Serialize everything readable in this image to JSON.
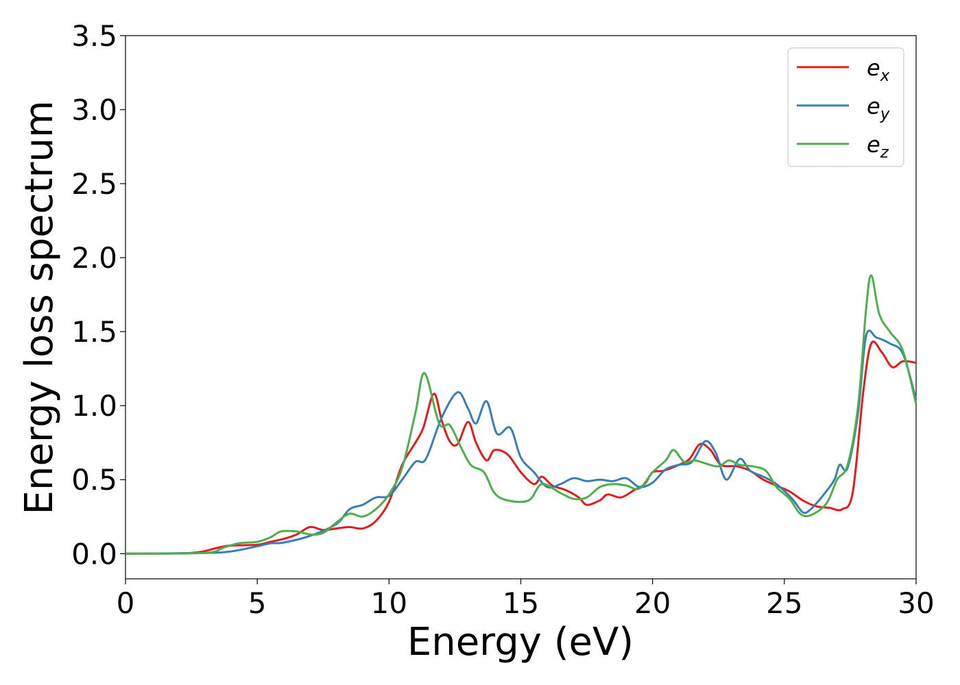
{
  "chart_data": {
    "type": "line",
    "xlabel": "Energy (eV)",
    "ylabel": "Energy loss spectrum",
    "xlim": [
      0,
      30
    ],
    "ylim": [
      -0.17,
      3.5
    ],
    "xticks": [
      "0",
      "5",
      "10",
      "15",
      "20",
      "25",
      "30"
    ],
    "yticks": [
      "0.0",
      "0.5",
      "1.0",
      "1.5",
      "2.0",
      "2.5",
      "3.0",
      "3.5"
    ],
    "grid": false,
    "legend_position": "top-right",
    "series": [
      {
        "name": "e",
        "subscript": "x",
        "color": "#e41a1c",
        "points": [
          [
            0,
            0
          ],
          [
            2.5,
            0.005
          ],
          [
            3.5,
            0.04
          ],
          [
            4,
            0.055
          ],
          [
            5,
            0.06
          ],
          [
            5.5,
            0.08
          ],
          [
            6,
            0.1
          ],
          [
            6.5,
            0.13
          ],
          [
            7,
            0.18
          ],
          [
            7.5,
            0.16
          ],
          [
            8,
            0.17
          ],
          [
            8.5,
            0.18
          ],
          [
            9,
            0.17
          ],
          [
            9.5,
            0.22
          ],
          [
            10,
            0.35
          ],
          [
            10.5,
            0.6
          ],
          [
            11,
            0.75
          ],
          [
            11.3,
            0.85
          ],
          [
            11.7,
            1.08
          ],
          [
            12,
            0.9
          ],
          [
            12.3,
            0.76
          ],
          [
            12.6,
            0.74
          ],
          [
            13,
            0.89
          ],
          [
            13.3,
            0.75
          ],
          [
            13.7,
            0.63
          ],
          [
            14,
            0.7
          ],
          [
            14.5,
            0.67
          ],
          [
            15,
            0.55
          ],
          [
            15.5,
            0.47
          ],
          [
            15.8,
            0.52
          ],
          [
            16.2,
            0.46
          ],
          [
            16.7,
            0.43
          ],
          [
            17.2,
            0.38
          ],
          [
            17.5,
            0.33
          ],
          [
            18,
            0.36
          ],
          [
            18.3,
            0.4
          ],
          [
            18.8,
            0.38
          ],
          [
            19.3,
            0.43
          ],
          [
            19.7,
            0.47
          ],
          [
            20,
            0.55
          ],
          [
            20.4,
            0.56
          ],
          [
            21,
            0.6
          ],
          [
            21.4,
            0.64
          ],
          [
            21.8,
            0.74
          ],
          [
            22.2,
            0.7
          ],
          [
            22.6,
            0.6
          ],
          [
            23.2,
            0.59
          ],
          [
            23.7,
            0.56
          ],
          [
            24.2,
            0.5
          ],
          [
            24.7,
            0.46
          ],
          [
            25.2,
            0.42
          ],
          [
            25.7,
            0.36
          ],
          [
            26.2,
            0.32
          ],
          [
            26.7,
            0.31
          ],
          [
            27.2,
            0.3
          ],
          [
            27.6,
            0.42
          ],
          [
            28,
            1.1
          ],
          [
            28.3,
            1.42
          ],
          [
            28.7,
            1.36
          ],
          [
            29.1,
            1.26
          ],
          [
            29.5,
            1.3
          ],
          [
            30,
            1.29
          ]
        ]
      },
      {
        "name": "e",
        "subscript": "y",
        "color": "#377eb8",
        "points": [
          [
            0,
            0
          ],
          [
            3,
            0.005
          ],
          [
            4,
            0.015
          ],
          [
            5,
            0.05
          ],
          [
            5.5,
            0.07
          ],
          [
            6,
            0.075
          ],
          [
            7,
            0.12
          ],
          [
            8,
            0.2
          ],
          [
            8.5,
            0.3
          ],
          [
            9,
            0.33
          ],
          [
            9.5,
            0.38
          ],
          [
            10,
            0.39
          ],
          [
            10.5,
            0.5
          ],
          [
            11,
            0.62
          ],
          [
            11.4,
            0.64
          ],
          [
            12,
            0.92
          ],
          [
            12.6,
            1.09
          ],
          [
            13,
            0.98
          ],
          [
            13.3,
            0.88
          ],
          [
            13.7,
            1.03
          ],
          [
            14.1,
            0.81
          ],
          [
            14.6,
            0.85
          ],
          [
            15,
            0.65
          ],
          [
            15.5,
            0.55
          ],
          [
            16,
            0.45
          ],
          [
            16.5,
            0.47
          ],
          [
            17,
            0.51
          ],
          [
            17.5,
            0.49
          ],
          [
            18,
            0.5
          ],
          [
            18.5,
            0.49
          ],
          [
            19,
            0.51
          ],
          [
            19.5,
            0.45
          ],
          [
            20,
            0.48
          ],
          [
            20.5,
            0.57
          ],
          [
            21,
            0.6
          ],
          [
            21.5,
            0.62
          ],
          [
            22,
            0.76
          ],
          [
            22.4,
            0.68
          ],
          [
            22.8,
            0.5
          ],
          [
            23.3,
            0.64
          ],
          [
            23.7,
            0.56
          ],
          [
            24.2,
            0.52
          ],
          [
            24.7,
            0.47
          ],
          [
            25.3,
            0.37
          ],
          [
            25.7,
            0.28
          ],
          [
            26,
            0.3
          ],
          [
            26.5,
            0.4
          ],
          [
            26.9,
            0.5
          ],
          [
            27.1,
            0.6
          ],
          [
            27.4,
            0.58
          ],
          [
            27.8,
            0.95
          ],
          [
            28.1,
            1.47
          ],
          [
            28.5,
            1.46
          ],
          [
            29,
            1.42
          ],
          [
            29.5,
            1.35
          ],
          [
            30,
            1.04
          ]
        ]
      },
      {
        "name": "e",
        "subscript": "z",
        "color": "#4daf4a",
        "points": [
          [
            0,
            0
          ],
          [
            3,
            0.005
          ],
          [
            3.7,
            0.04
          ],
          [
            4.3,
            0.07
          ],
          [
            5,
            0.08
          ],
          [
            5.5,
            0.11
          ],
          [
            5.9,
            0.15
          ],
          [
            6.5,
            0.15
          ],
          [
            7,
            0.13
          ],
          [
            7.5,
            0.14
          ],
          [
            8,
            0.21
          ],
          [
            8.5,
            0.27
          ],
          [
            9,
            0.25
          ],
          [
            9.5,
            0.3
          ],
          [
            10,
            0.4
          ],
          [
            10.5,
            0.58
          ],
          [
            11,
            0.95
          ],
          [
            11.35,
            1.22
          ],
          [
            11.9,
            0.88
          ],
          [
            12.3,
            0.87
          ],
          [
            12.7,
            0.73
          ],
          [
            13.1,
            0.6
          ],
          [
            13.6,
            0.55
          ],
          [
            14,
            0.41
          ],
          [
            14.5,
            0.36
          ],
          [
            15.3,
            0.36
          ],
          [
            15.8,
            0.47
          ],
          [
            16.5,
            0.41
          ],
          [
            17,
            0.37
          ],
          [
            17.5,
            0.38
          ],
          [
            18,
            0.45
          ],
          [
            18.5,
            0.47
          ],
          [
            19,
            0.46
          ],
          [
            19.5,
            0.44
          ],
          [
            20,
            0.55
          ],
          [
            20.5,
            0.63
          ],
          [
            20.8,
            0.7
          ],
          [
            21.2,
            0.62
          ],
          [
            21.6,
            0.63
          ],
          [
            22,
            0.61
          ],
          [
            22.5,
            0.59
          ],
          [
            22.9,
            0.63
          ],
          [
            23.3,
            0.6
          ],
          [
            23.8,
            0.59
          ],
          [
            24.3,
            0.56
          ],
          [
            24.7,
            0.45
          ],
          [
            25.2,
            0.37
          ],
          [
            25.6,
            0.27
          ],
          [
            26,
            0.26
          ],
          [
            26.6,
            0.34
          ],
          [
            27,
            0.5
          ],
          [
            27.4,
            0.6
          ],
          [
            27.8,
            1.0
          ],
          [
            28.1,
            1.65
          ],
          [
            28.3,
            1.88
          ],
          [
            28.6,
            1.62
          ],
          [
            29,
            1.5
          ],
          [
            29.5,
            1.37
          ],
          [
            30,
            1.01
          ]
        ]
      }
    ]
  }
}
